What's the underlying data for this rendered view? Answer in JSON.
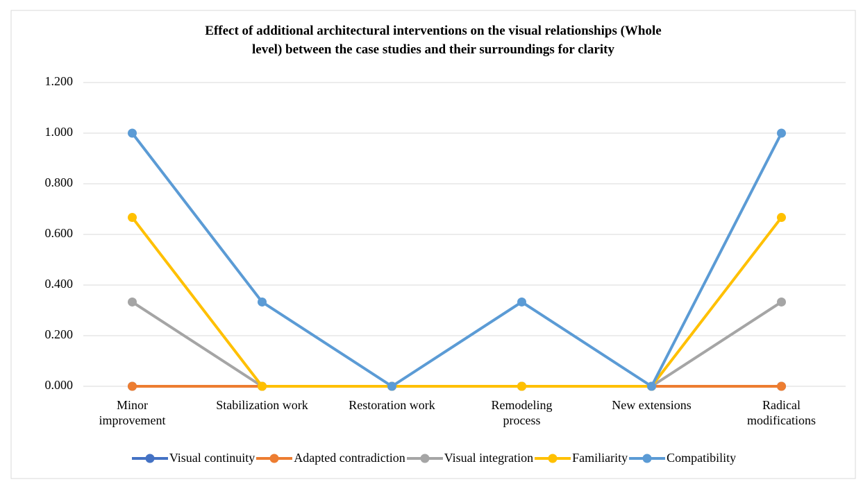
{
  "chart_data": {
    "type": "line",
    "title": "Effect of additional architectural interventions on the visual relationships (Whole\nlevel) between the case studies and their surroundings for clarity",
    "categories": [
      "Minor\nimprovement",
      "Stabilization work",
      "Restoration work",
      "Remodeling\nprocess",
      "New extensions",
      "Radical\nmodifications"
    ],
    "series": [
      {
        "name": "Visual continuity",
        "color": "#4472c4",
        "values": [
          0,
          0,
          0,
          0,
          0,
          0
        ]
      },
      {
        "name": "Adapted contradiction",
        "color": "#ed7d31",
        "values": [
          0,
          0,
          0,
          0,
          0,
          0
        ]
      },
      {
        "name": "Visual integration",
        "color": "#a5a5a5",
        "values": [
          0.333,
          0,
          0,
          0,
          0,
          0.333
        ]
      },
      {
        "name": "Familiarity",
        "color": "#ffc000",
        "values": [
          0.667,
          0,
          0,
          0,
          0,
          0.667
        ]
      },
      {
        "name": "Compatibility",
        "color": "#5b9bd5",
        "values": [
          1,
          0.333,
          0,
          0.333,
          0,
          1
        ]
      }
    ],
    "ylim": [
      0,
      1.2
    ],
    "yticks": [
      {
        "value": 0,
        "label": "0.000"
      },
      {
        "value": 0.2,
        "label": "0.200"
      },
      {
        "value": 0.4,
        "label": "0.400"
      },
      {
        "value": 0.6,
        "label": "0.600"
      },
      {
        "value": 0.8,
        "label": "0.800"
      },
      {
        "value": 1,
        "label": "1.000"
      },
      {
        "value": 1.2,
        "label": "1.200"
      }
    ],
    "grid": true,
    "legend": "bottom"
  }
}
